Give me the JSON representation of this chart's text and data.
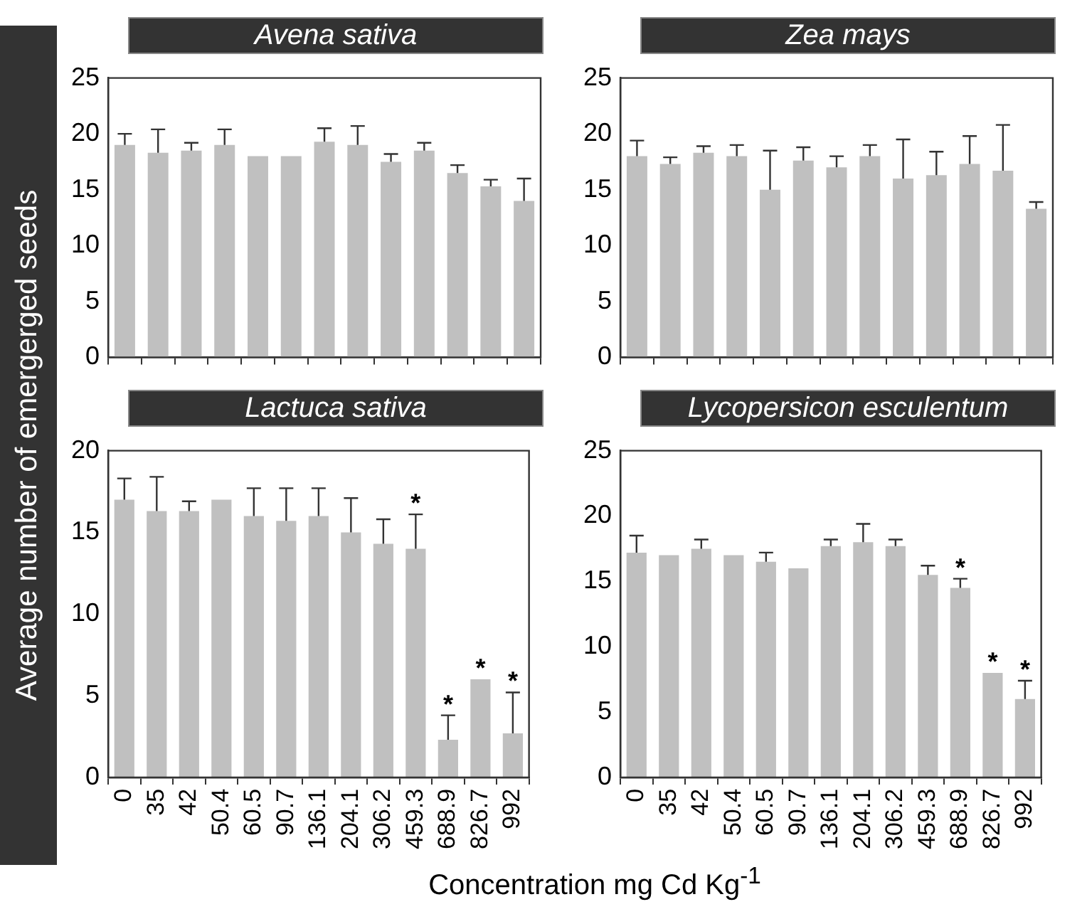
{
  "chart_data": [
    {
      "type": "bar",
      "title": "Avena sativa",
      "ylabel": "Average number of emergerged seeds",
      "categories": [
        "0",
        "35",
        "42",
        "50.4",
        "60.5",
        "90.7",
        "136.1",
        "204.1",
        "306.2",
        "459.3",
        "688.9",
        "826.7",
        "992"
      ],
      "color": "#c0c0c0",
      "values": [
        19,
        18.3,
        18.5,
        19,
        18,
        18,
        19.3,
        19,
        17.5,
        18.5,
        16.5,
        15.3,
        14
      ],
      "errors": [
        [
          19,
          20
        ],
        [
          18.3,
          20.4
        ],
        [
          18.5,
          19.2
        ],
        [
          19,
          20.4
        ],
        null,
        null,
        [
          19.3,
          20.5
        ],
        [
          19,
          20.7
        ],
        [
          17.5,
          18.2
        ],
        [
          18.5,
          19.2
        ],
        [
          16.5,
          17.2
        ],
        [
          15.3,
          15.9
        ],
        [
          14,
          16
        ]
      ],
      "ylim": [
        0,
        25
      ],
      "yticks": [
        0,
        5,
        10,
        15,
        20,
        25
      ],
      "grid": false,
      "tick_labels": "y"
    },
    {
      "type": "bar",
      "title": "Zea mays",
      "categories": [
        "0",
        "35",
        "42",
        "50.4",
        "60.5",
        "90.7",
        "136.1",
        "204.1",
        "306.2",
        "459.3",
        "688.9",
        "826.7",
        "992"
      ],
      "color": "#c0c0c0",
      "values": [
        18,
        17.3,
        18.3,
        18,
        15,
        17.6,
        17,
        18,
        16,
        16.3,
        17.3,
        16.7,
        13.3
      ],
      "errors": [
        [
          18,
          19.4
        ],
        [
          17.3,
          17.9
        ],
        [
          18.3,
          18.9
        ],
        [
          18,
          19
        ],
        [
          15,
          18.5
        ],
        [
          17.6,
          18.8
        ],
        [
          17,
          18
        ],
        [
          18,
          19
        ],
        [
          16,
          19.5
        ],
        [
          16.3,
          18.4
        ],
        [
          17.3,
          19.8
        ],
        [
          16.7,
          20.8
        ],
        [
          13.3,
          13.9
        ]
      ],
      "ylim": [
        0,
        25
      ],
      "yticks": [
        0,
        5,
        10,
        15,
        20,
        25
      ],
      "grid": false,
      "tick_labels": "y"
    },
    {
      "type": "bar",
      "title": "Lactuca sativa",
      "xlabel": "Concentration mg Cd Kg$^{-1}$",
      "categories": [
        "0",
        "35",
        "42",
        "50.4",
        "60.5",
        "90.7",
        "136.1",
        "204.1",
        "306.2",
        "459.3",
        "688.9",
        "826.7",
        "992"
      ],
      "color": "#c0c0c0",
      "values": [
        17,
        16.3,
        16.3,
        17,
        16,
        15.7,
        16,
        15,
        14.3,
        14,
        2.3,
        6,
        2.7
      ],
      "errors": [
        [
          17,
          18.3
        ],
        [
          16.3,
          18.4
        ],
        [
          16.3,
          16.9
        ],
        null,
        [
          16,
          17.7
        ],
        [
          15.7,
          17.7
        ],
        [
          16,
          17.7
        ],
        [
          15,
          17.1
        ],
        [
          14.3,
          15.8
        ],
        [
          14,
          16.1
        ],
        [
          2.3,
          3.8
        ],
        null,
        [
          2.7,
          5.2
        ]
      ],
      "ylim": [
        0,
        20
      ],
      "yticks": [
        0,
        5,
        10,
        15,
        20
      ],
      "grid": false,
      "annotations": [
        {
          "text": "*",
          "x": "459.3",
          "y": 16.1
        },
        {
          "text": "*",
          "x": "688.9",
          "y": 3.8
        },
        {
          "text": "*",
          "x": "826.7",
          "y": 6
        },
        {
          "text": "*",
          "x": "992",
          "y": 5.2
        }
      ]
    },
    {
      "type": "bar",
      "title": "Lycopersicon esculentum",
      "categories": [
        "0",
        "35",
        "42",
        "50.4",
        "60.5",
        "90.7",
        "136.1",
        "204.1",
        "306.2",
        "459.3",
        "688.9",
        "826.7",
        "992"
      ],
      "color": "#c0c0c0",
      "values": [
        17.2,
        17,
        17.5,
        17,
        16.5,
        16,
        17.7,
        18,
        17.7,
        15.5,
        14.5,
        8,
        6
      ],
      "errors": [
        [
          17.2,
          18.5
        ],
        null,
        [
          17.5,
          18.2
        ],
        null,
        [
          16.5,
          17.2
        ],
        null,
        [
          17.7,
          18.2
        ],
        [
          18,
          19.4
        ],
        [
          17.7,
          18.2
        ],
        [
          15.5,
          16.2
        ],
        [
          14.5,
          15.2
        ],
        null,
        [
          6,
          7.4
        ]
      ],
      "ylim": [
        0,
        25
      ],
      "yticks": [
        0,
        5,
        10,
        15,
        20,
        25
      ],
      "grid": false,
      "annotations": [
        {
          "text": "*",
          "x": "688.9",
          "y": 15.2
        },
        {
          "text": "*",
          "x": "826.7",
          "y": 8
        },
        {
          "text": "*",
          "x": "992",
          "y": 7.4
        }
      ]
    }
  ]
}
